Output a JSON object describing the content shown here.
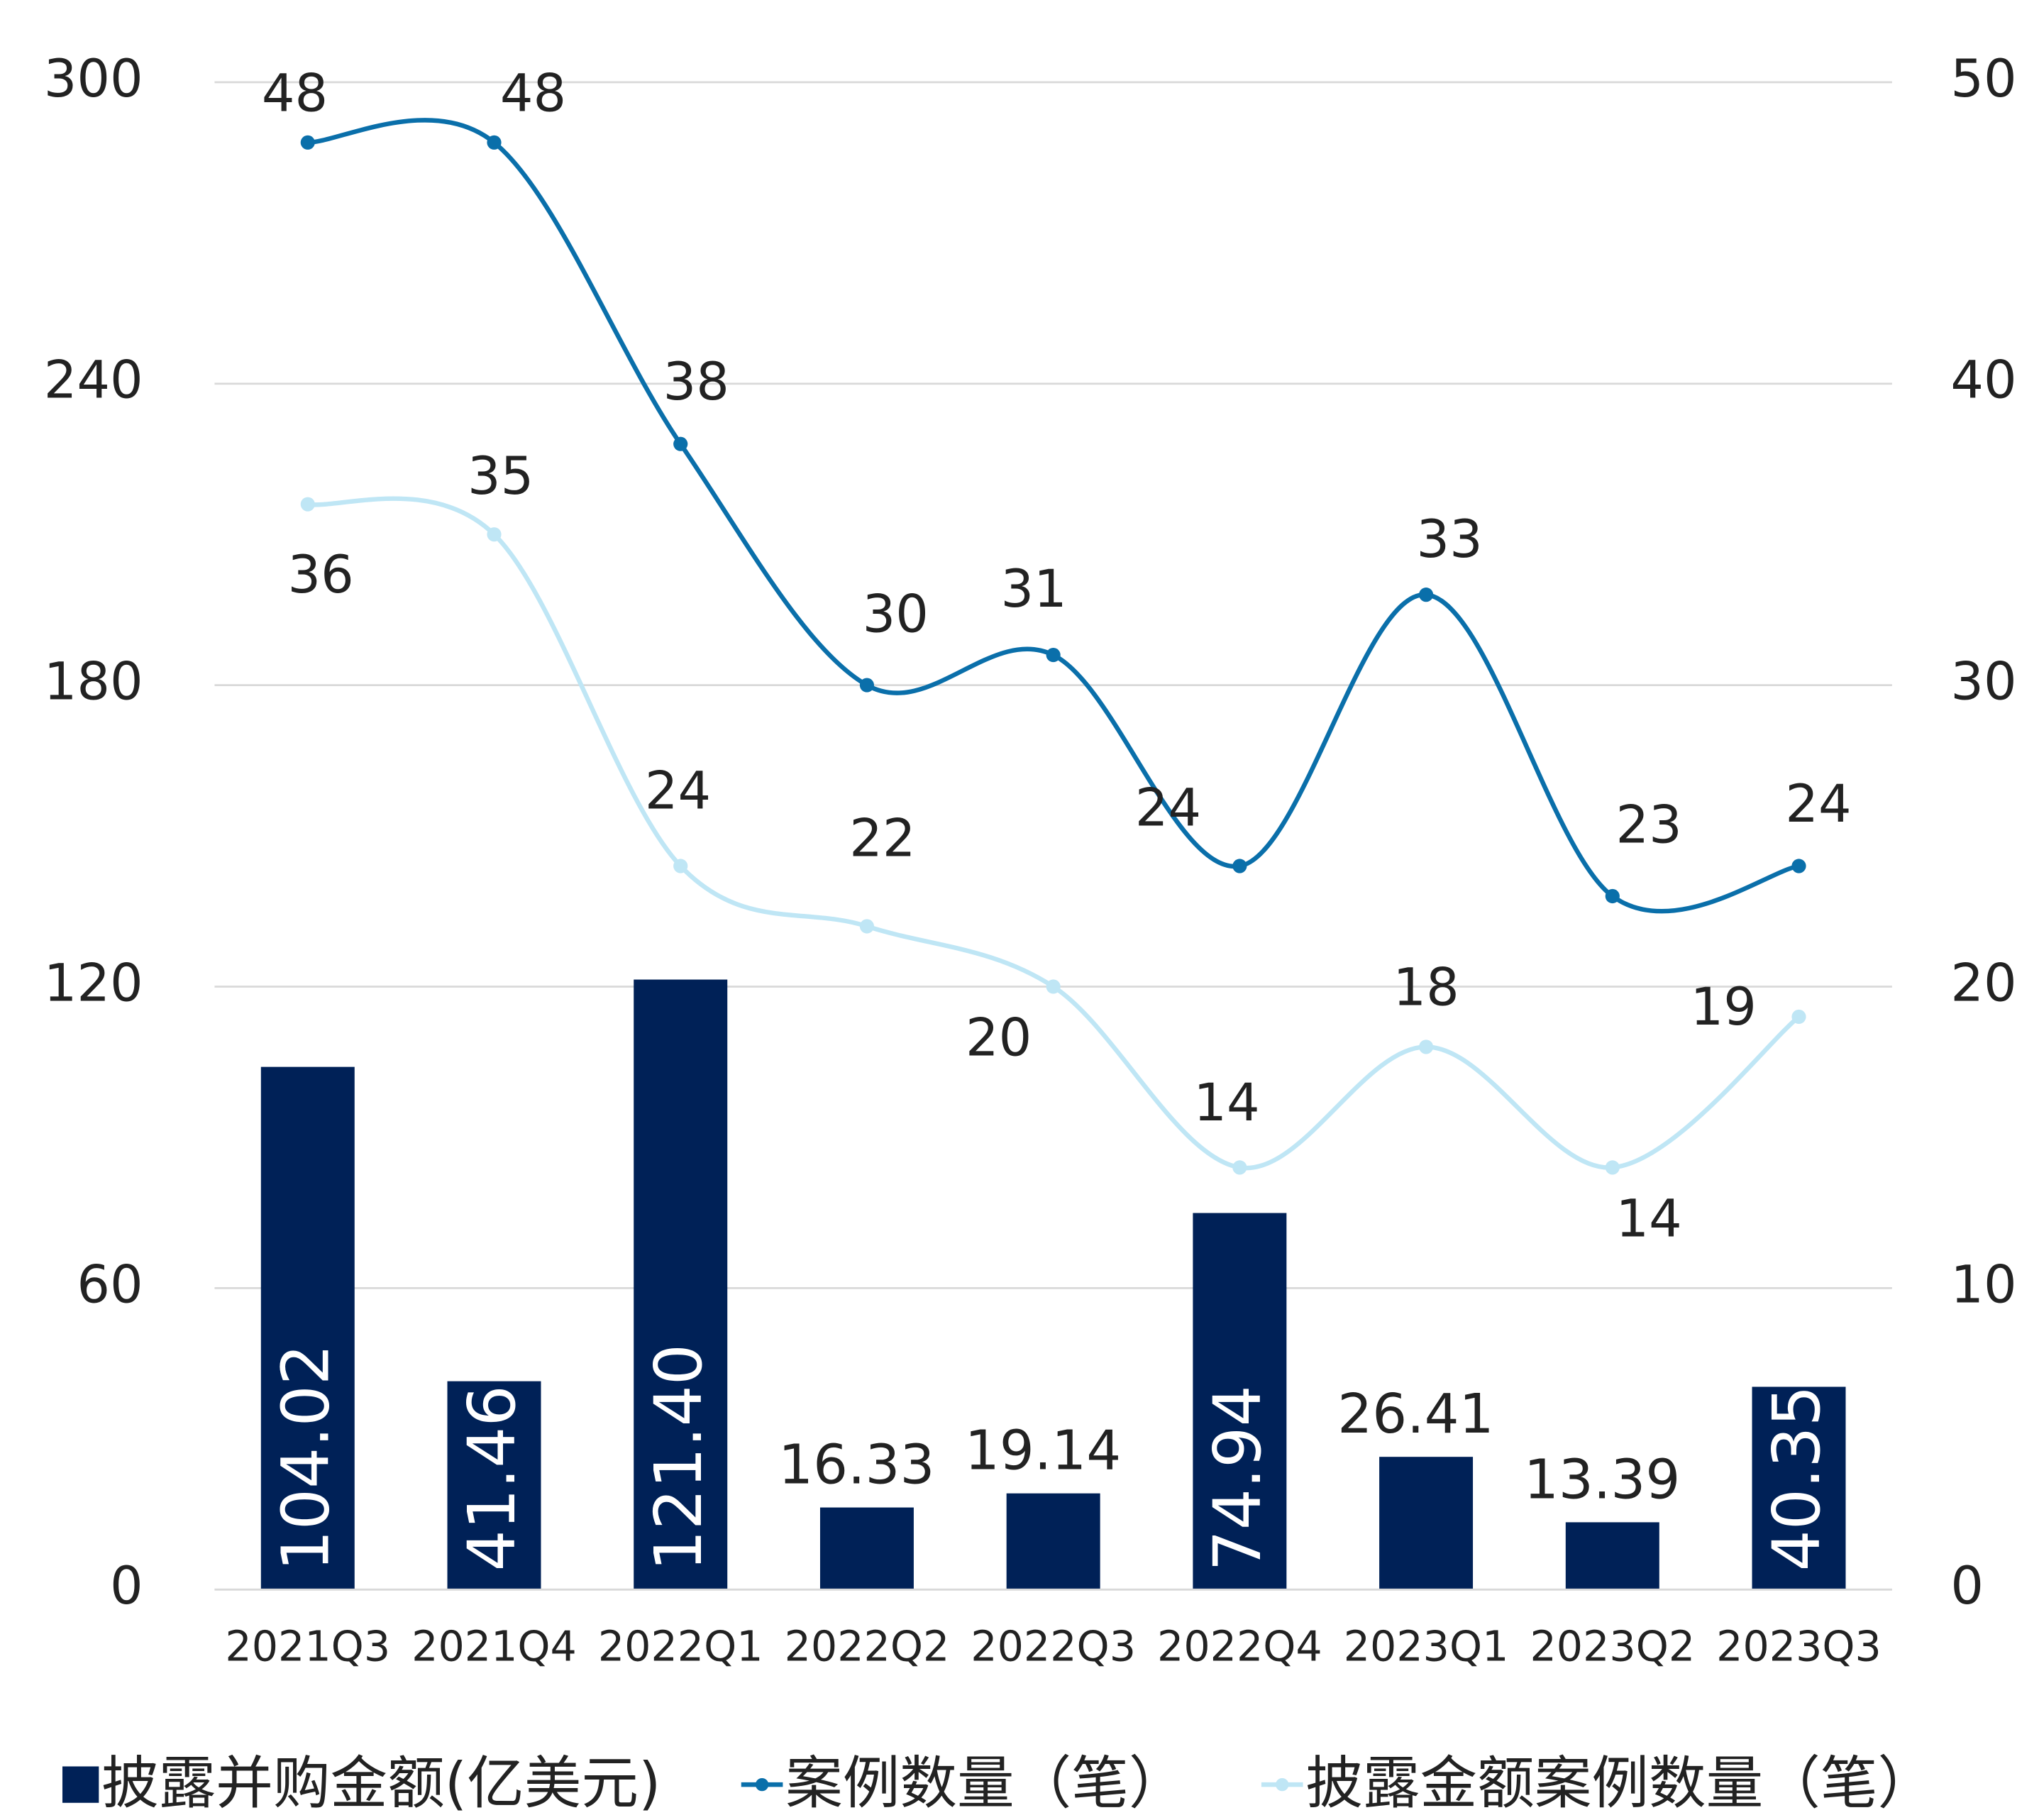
{
  "chart_data": {
    "type": "bar",
    "categories": [
      "2021Q3",
      "2021Q4",
      "2022Q1",
      "2022Q2",
      "2022Q3",
      "2022Q4",
      "2023Q1",
      "2023Q2",
      "2023Q3"
    ],
    "series": [
      {
        "name": "披露并购金额(亿美元)",
        "type": "bar",
        "color": "#002157",
        "values": [
          104.02,
          41.46,
          121.4,
          16.33,
          19.14,
          74.94,
          26.41,
          13.39,
          40.35
        ],
        "value_labels": [
          "104.02",
          "41.46",
          "121.40",
          "16.33",
          "19.14",
          "74.94",
          "26.41",
          "13.39",
          "40.35"
        ]
      },
      {
        "name": "案例数量（笔）",
        "type": "line",
        "axis": "y2",
        "color": "#0a6faa",
        "values": [
          48,
          48,
          38,
          30,
          31,
          24,
          33,
          23,
          24
        ]
      },
      {
        "name": "披露金额案例数量（笔）",
        "type": "line",
        "axis": "y2",
        "color": "#bfe6f5",
        "values": [
          36,
          35,
          24,
          22,
          20,
          14,
          18,
          14,
          19
        ]
      }
    ],
    "ylim": [
      0,
      300
    ],
    "yticks": [
      0,
      60,
      120,
      180,
      240,
      300
    ],
    "y2lim": [
      0,
      50
    ],
    "y2ticks": [
      0,
      10,
      20,
      30,
      40,
      50
    ],
    "grid": true,
    "legend": "bottom"
  }
}
